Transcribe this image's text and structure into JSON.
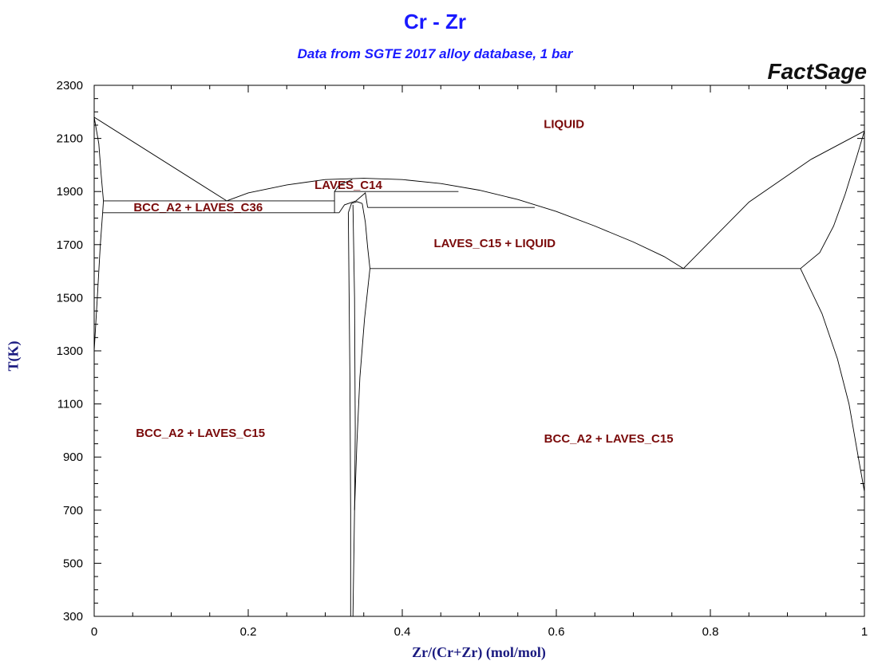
{
  "chart_data": {
    "type": "line",
    "title": "Cr - Zr",
    "subtitle": "Data from SGTE 2017 alloy database, 1 bar",
    "brand": "FactSage",
    "xlabel": "Zr/(Cr+Zr) (mol/mol)",
    "ylabel": "T(K)",
    "xlim": [
      0,
      1
    ],
    "ylim": [
      300,
      2300
    ],
    "x_ticks": [
      0,
      0.2,
      0.4,
      0.6,
      0.8,
      1
    ],
    "x_tick_labels": [
      "0",
      "0.2",
      "0.4",
      "0.6",
      "0.8",
      "1"
    ],
    "y_ticks": [
      300,
      500,
      700,
      900,
      1100,
      1300,
      1500,
      1700,
      1900,
      2100,
      2300
    ],
    "y_tick_labels": [
      "300",
      "500",
      "700",
      "900",
      "1100",
      "1300",
      "1500",
      "1700",
      "1900",
      "2100",
      "2300"
    ],
    "grid": false,
    "colors": {
      "title": "#1a1aff",
      "region_label": "#7a0a0a",
      "axis_label": "#1a1a80",
      "line": "#000000"
    },
    "region_labels": [
      {
        "text": "LIQUID",
        "x": 0.61,
        "y": 2155
      },
      {
        "text": "LAVES_C14",
        "x": 0.33,
        "y": 1925
      },
      {
        "text": "BCC_A2 + LAVES_C36",
        "x": 0.135,
        "y": 1840
      },
      {
        "text": "LAVES_C15 + LIQUID",
        "x": 0.52,
        "y": 1705
      },
      {
        "text": "BCC_A2 + LAVES_C15",
        "x": 0.138,
        "y": 990
      },
      {
        "text": "BCC_A2 + LAVES_C15",
        "x": 0.668,
        "y": 970
      }
    ],
    "phase_boundaries": [
      {
        "name": "liquidus-cr-side",
        "points": [
          [
            0,
            2180
          ],
          [
            0.172,
            1865
          ]
        ]
      },
      {
        "name": "liquidus-c14-dome",
        "points": [
          [
            0.172,
            1865
          ],
          [
            0.2,
            1895
          ],
          [
            0.25,
            1925
          ],
          [
            0.3,
            1945
          ],
          [
            0.35,
            1950
          ],
          [
            0.4,
            1945
          ],
          [
            0.45,
            1930
          ],
          [
            0.5,
            1905
          ],
          [
            0.55,
            1870
          ],
          [
            0.6,
            1825
          ],
          [
            0.65,
            1770
          ],
          [
            0.7,
            1710
          ],
          [
            0.74,
            1655
          ],
          [
            0.765,
            1610
          ]
        ]
      },
      {
        "name": "liquidus-zr-side",
        "points": [
          [
            0.765,
            1610
          ],
          [
            0.85,
            1860
          ],
          [
            0.93,
            2020
          ],
          [
            1,
            2128
          ]
        ]
      },
      {
        "name": "solvus-bcc-cr-upper",
        "points": [
          [
            0,
            2180
          ],
          [
            0.006,
            2080
          ],
          [
            0.009,
            1965
          ],
          [
            0.012,
            1865
          ]
        ]
      },
      {
        "name": "solvus-bcc-cr-lower",
        "points": [
          [
            0.012,
            1865
          ],
          [
            0.011,
            1820
          ],
          [
            0.008,
            1700
          ],
          [
            0.004,
            1500
          ],
          [
            0,
            1300
          ]
        ]
      },
      {
        "name": "solvus-bcc-zr",
        "points": [
          [
            1,
            2128
          ],
          [
            0.99,
            2030
          ],
          [
            0.975,
            1890
          ],
          [
            0.96,
            1770
          ],
          [
            0.942,
            1670
          ],
          [
            0.917,
            1610
          ]
        ]
      },
      {
        "name": "solvus-bcc-zr-low",
        "points": [
          [
            0.917,
            1610
          ],
          [
            0.945,
            1440
          ],
          [
            0.965,
            1270
          ],
          [
            0.98,
            1100
          ],
          [
            0.992,
            900
          ],
          [
            1,
            770
          ]
        ]
      },
      {
        "name": "eutectic-1865",
        "points": [
          [
            0.012,
            1865
          ],
          [
            0.312,
            1865
          ]
        ]
      },
      {
        "name": "peritectic-1820",
        "points": [
          [
            0.011,
            1820
          ],
          [
            0.318,
            1820
          ]
        ]
      },
      {
        "name": "c14-upper-1900",
        "points": [
          [
            0.312,
            1900
          ],
          [
            0.473,
            1900
          ]
        ]
      },
      {
        "name": "c14-lower-1840",
        "points": [
          [
            0.355,
            1840
          ],
          [
            0.572,
            1840
          ]
        ]
      },
      {
        "name": "eutectic-1610",
        "points": [
          [
            0.358,
            1610
          ],
          [
            0.917,
            1610
          ]
        ]
      },
      {
        "name": "c36-left",
        "points": [
          [
            0.312,
            1820
          ],
          [
            0.312,
            1900
          ],
          [
            0.318,
            1925
          ],
          [
            0.335,
            1945
          ]
        ]
      },
      {
        "name": "c36-right",
        "points": [
          [
            0.318,
            1820
          ],
          [
            0.325,
            1850
          ],
          [
            0.34,
            1865
          ],
          [
            0.352,
            1895
          ],
          [
            0.355,
            1840
          ]
        ]
      },
      {
        "name": "c15-left",
        "points": [
          [
            0.33,
            1820
          ],
          [
            0.334,
            1855
          ],
          [
            0.341,
            1862
          ],
          [
            0.348,
            1855
          ]
        ]
      },
      {
        "name": "c15-right-upper",
        "points": [
          [
            0.348,
            1855
          ],
          [
            0.352,
            1785
          ],
          [
            0.355,
            1690
          ],
          [
            0.358,
            1610
          ]
        ]
      },
      {
        "name": "c15-left-solvus",
        "points": [
          [
            0.33,
            1820
          ],
          [
            0.332,
            1200
          ],
          [
            0.333,
            700
          ],
          [
            0.333,
            300
          ]
        ]
      },
      {
        "name": "c15-right-solvus",
        "points": [
          [
            0.358,
            1610
          ],
          [
            0.351,
            1420
          ],
          [
            0.345,
            1200
          ],
          [
            0.341,
            950
          ],
          [
            0.338,
            700
          ],
          [
            0.336,
            300
          ]
        ]
      },
      {
        "name": "c15-inner",
        "points": [
          [
            0.336,
            1850
          ],
          [
            0.338,
            1500
          ],
          [
            0.339,
            1000
          ],
          [
            0.338,
            700
          ]
        ]
      }
    ]
  }
}
